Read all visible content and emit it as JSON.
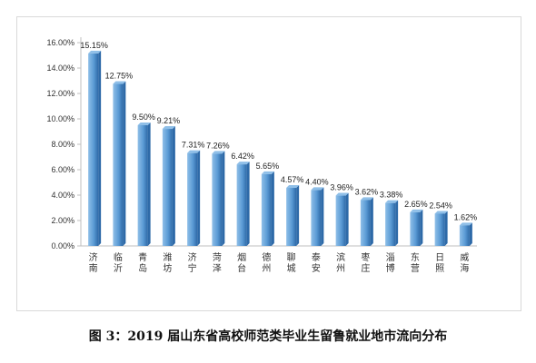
{
  "caption": "图 3：2019 届山东省高校师范类毕业生留鲁就业地市流向分布",
  "chart_data": {
    "type": "bar",
    "title": "",
    "xlabel": "",
    "ylabel": "",
    "ylim": [
      0,
      16
    ],
    "yticks": [
      "0.00%",
      "2.00%",
      "4.00%",
      "6.00%",
      "8.00%",
      "10.00%",
      "12.00%",
      "14.00%",
      "16.00%"
    ],
    "grid": false,
    "categories": [
      "济南",
      "临沂",
      "青岛",
      "潍坊",
      "济宁",
      "菏泽",
      "烟台",
      "德州",
      "聊城",
      "泰安",
      "滨州",
      "枣庄",
      "淄博",
      "东营",
      "日照",
      "威海"
    ],
    "values": [
      15.15,
      12.75,
      9.5,
      9.21,
      7.31,
      7.26,
      6.42,
      5.65,
      4.57,
      4.4,
      3.96,
      3.62,
      3.38,
      2.65,
      2.54,
      1.62
    ],
    "value_labels": [
      "15.15%",
      "12.75%",
      "9.50%",
      "9.21%",
      "7.31%",
      "7.26%",
      "6.42%",
      "5.65%",
      "4.57%",
      "4.40%",
      "3.96%",
      "3.62%",
      "3.38%",
      "2.65%",
      "2.54%",
      "1.62%"
    ],
    "colors": {
      "bar": "#5b9bd5",
      "bar_dark": "#2e6aa8",
      "bar_light": "#8fbfe8",
      "axis": "#bfbfbf"
    }
  }
}
